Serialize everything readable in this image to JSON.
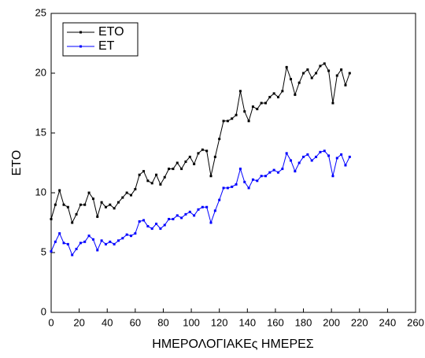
{
  "chart_data": {
    "type": "line",
    "xlabel": "ΗΜΕΡΟΛΟΓΙΑΚΕς ΗΜΕΡΕΣ",
    "ylabel": "ETO",
    "x": [
      0,
      3,
      6,
      9,
      12,
      15,
      18,
      21,
      24,
      27,
      30,
      33,
      36,
      39,
      42,
      45,
      48,
      51,
      54,
      57,
      60,
      63,
      66,
      69,
      72,
      75,
      78,
      81,
      84,
      87,
      90,
      93,
      96,
      99,
      102,
      105,
      108,
      111,
      114,
      117,
      120,
      123,
      126,
      129,
      132,
      135,
      138,
      141,
      144,
      147,
      150,
      153,
      156,
      159,
      162,
      165,
      168,
      171,
      174,
      177,
      180,
      183,
      186,
      189,
      192,
      195,
      198,
      201,
      204,
      207,
      210,
      213
    ],
    "series": [
      {
        "name": "ETO",
        "color": "#000000",
        "values": [
          7.8,
          9.0,
          10.2,
          9.0,
          8.8,
          7.5,
          8.2,
          9.0,
          9.0,
          10.0,
          9.5,
          8.0,
          9.2,
          8.8,
          9.0,
          8.7,
          9.2,
          9.6,
          10.0,
          9.8,
          10.3,
          11.5,
          11.8,
          11.0,
          10.8,
          11.5,
          10.7,
          11.3,
          12.0,
          12.0,
          12.5,
          12.0,
          12.6,
          13.0,
          12.4,
          13.3,
          13.6,
          13.5,
          11.4,
          13.0,
          14.5,
          16.0,
          16.0,
          16.2,
          16.5,
          18.5,
          16.8,
          16.0,
          17.2,
          17.0,
          17.5,
          17.5,
          18.0,
          18.3,
          18.0,
          18.5,
          20.5,
          19.5,
          18.2,
          19.2,
          20.0,
          20.3,
          19.6,
          20.0,
          20.6,
          20.8,
          20.2,
          17.5,
          19.8,
          20.3,
          19.0,
          20.0
        ]
      },
      {
        "name": "ET",
        "color": "#0000ff",
        "values": [
          5.1,
          5.9,
          6.6,
          5.8,
          5.7,
          4.8,
          5.3,
          5.8,
          5.9,
          6.4,
          6.1,
          5.2,
          6.0,
          5.7,
          5.9,
          5.7,
          6.0,
          6.2,
          6.5,
          6.4,
          6.6,
          7.6,
          7.7,
          7.2,
          7.0,
          7.4,
          7.0,
          7.3,
          7.8,
          7.8,
          8.1,
          7.9,
          8.2,
          8.4,
          8.1,
          8.6,
          8.8,
          8.8,
          7.5,
          8.5,
          9.4,
          10.4,
          10.4,
          10.5,
          10.7,
          12.0,
          10.9,
          10.4,
          11.1,
          11.0,
          11.4,
          11.4,
          11.7,
          11.9,
          11.7,
          12.0,
          13.3,
          12.7,
          11.8,
          12.5,
          13.0,
          13.2,
          12.7,
          13.0,
          13.4,
          13.5,
          13.1,
          11.4,
          12.9,
          13.2,
          12.3,
          13.0
        ]
      }
    ],
    "xlim": [
      0,
      260
    ],
    "ylim": [
      0,
      25
    ],
    "xticks": [
      0,
      20,
      40,
      60,
      80,
      100,
      120,
      140,
      160,
      180,
      200,
      220,
      240,
      260
    ],
    "yticks": [
      0,
      5,
      10,
      15,
      20,
      25
    ],
    "legend": "upper-left"
  }
}
